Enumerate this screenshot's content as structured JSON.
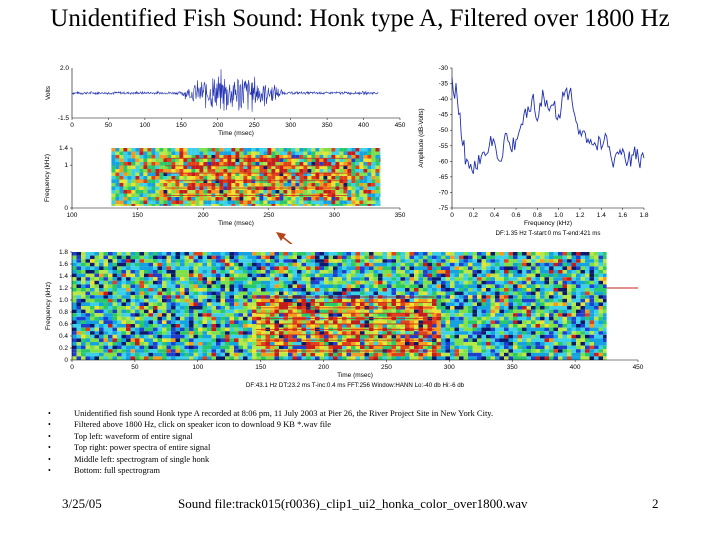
{
  "slide": {
    "title": "Unidentified Fish Sound: Honk type A, Filtered over 1800 Hz",
    "date": "3/25/05",
    "sound_file": "Sound file:track015(r0036)_clip1_ui2_honka_color_over1800.wav",
    "page_number": "2",
    "bullets": [
      "Unidentified fish sound Honk type A recorded at 8:06 pm, 11 July 2003 at Pier 26, the River Project Site in New York City.",
      "Filtered above 1800 Hz, click on speaker icon to download 9 KB *.wav file",
      "Top left: waveform of entire signal",
      "Top right: power spectra of entire signal",
      "Middle left: spectrogram of single honk",
      "Bottom: full spectrogram"
    ]
  },
  "chart_data": [
    {
      "type": "line",
      "name": "waveform",
      "ylabel": "Volts",
      "xlabel": "Time (msec)",
      "yticks": [
        "2.0",
        "-1.5"
      ],
      "ylim": [
        -1.5,
        2.0
      ],
      "xticks": [
        "0",
        "50",
        "100",
        "150",
        "200",
        "250",
        "300",
        "350",
        "400",
        "450"
      ],
      "xlim": [
        0,
        450
      ]
    },
    {
      "type": "line",
      "name": "power-spectrum",
      "ylabel": "Amplitude (dB-Volts)",
      "xlabel": "Frequency (kHz)",
      "yticks": [
        "-30",
        "-35",
        "-40",
        "-45",
        "-50",
        "-55",
        "-60",
        "-65",
        "-70",
        "-75"
      ],
      "ylim": [
        -75,
        -30
      ],
      "xticks": [
        "0",
        "0.2",
        "0.4",
        "0.6",
        "0.8",
        "1.0",
        "1.2",
        "1.4",
        "1.6",
        "1.8"
      ],
      "xlim": [
        0,
        1.8
      ],
      "x": [
        0.0,
        0.05,
        0.1,
        0.15,
        0.2,
        0.25,
        0.3,
        0.35,
        0.4,
        0.45,
        0.5,
        0.55,
        0.6,
        0.65,
        0.7,
        0.75,
        0.8,
        0.85,
        0.9,
        0.95,
        1.0,
        1.05,
        1.1,
        1.15,
        1.2,
        1.25,
        1.3,
        1.35,
        1.4,
        1.45,
        1.5,
        1.55,
        1.6,
        1.65,
        1.7,
        1.75,
        1.8
      ],
      "y": [
        -33,
        -40,
        -55,
        -60,
        -64,
        -58,
        -57,
        -55,
        -54,
        -60,
        -51,
        -56,
        -53,
        -48,
        -46,
        -40,
        -47,
        -37,
        -43,
        -42,
        -45,
        -39,
        -38,
        -45,
        -50,
        -51,
        -53,
        -55,
        -56,
        -52,
        -60,
        -57,
        -56,
        -60,
        -58,
        -60,
        -59
      ],
      "footnote": "DF:1.35 Hz   T-start:0 ms   T-end:421 ms"
    },
    {
      "type": "heatmap",
      "name": "single-honk-spectrogram",
      "ylabel": "Frequency (kHz)",
      "xlabel": "Time (msec)",
      "yticks": [
        "1.4",
        "1",
        "0"
      ],
      "ylim": [
        0,
        1.4
      ],
      "xticks": [
        "100",
        "150",
        "200",
        "250",
        "300",
        "350"
      ],
      "xlim": [
        100,
        350
      ]
    },
    {
      "type": "heatmap",
      "name": "full-spectrogram",
      "ylabel": "Frequency (kHz)",
      "xlabel": "Time (msec)",
      "yticks": [
        "1.8",
        "1.6",
        "1.4",
        "1.2",
        "1.0",
        "0.8",
        "0.6",
        "0.4",
        "0.2",
        "0"
      ],
      "ylim": [
        0,
        1.8
      ],
      "xticks": [
        "0",
        "50",
        "100",
        "150",
        "200",
        "250",
        "300",
        "350",
        "400",
        "450"
      ],
      "xlim": [
        0,
        450
      ],
      "footnote": "DF:43.1 Hz   DT:23.2 ms   T-inc:0.4 ms   FFT:256   Window:HANN   Lo:-40 db   Hi:-6 db"
    }
  ]
}
